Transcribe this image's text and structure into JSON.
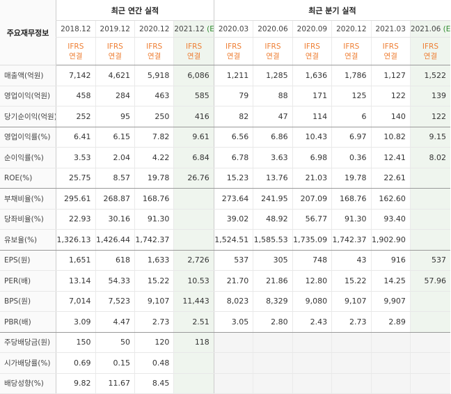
{
  "corner_label": "주요재무정보",
  "annual_header": "최근 연간 실적",
  "quarter_header": "최근 분기 실적",
  "annual_periods": [
    {
      "label": "2018.12",
      "est": ""
    },
    {
      "label": "2019.12",
      "est": ""
    },
    {
      "label": "2020.12",
      "est": ""
    },
    {
      "label": "2021.12",
      "est": "(E)"
    }
  ],
  "quarter_periods": [
    {
      "label": "2020.03",
      "est": ""
    },
    {
      "label": "2020.06",
      "est": ""
    },
    {
      "label": "2020.09",
      "est": ""
    },
    {
      "label": "2020.12",
      "est": ""
    },
    {
      "label": "2021.03",
      "est": ""
    },
    {
      "label": "2021.06",
      "est": "(E)"
    }
  ],
  "ifrs_line1": "IFRS",
  "ifrs_line2": "연결",
  "rows": [
    {
      "label": "매출액(억원)",
      "values": [
        "7,142",
        "4,621",
        "5,918",
        "6,086",
        "1,211",
        "1,285",
        "1,636",
        "1,786",
        "1,127",
        "1,522"
      ]
    },
    {
      "label": "영업이익(억원)",
      "values": [
        "458",
        "284",
        "463",
        "585",
        "79",
        "88",
        "171",
        "125",
        "122",
        "139"
      ]
    },
    {
      "label": "당기순이익(억원)",
      "values": [
        "252",
        "95",
        "250",
        "416",
        "82",
        "47",
        "114",
        "6",
        "140",
        "122"
      ]
    },
    {
      "label": "영업이익률(%)",
      "values": [
        "6.41",
        "6.15",
        "7.82",
        "9.61",
        "6.56",
        "6.86",
        "10.43",
        "6.97",
        "10.82",
        "9.15"
      ]
    },
    {
      "label": "순이익률(%)",
      "values": [
        "3.53",
        "2.04",
        "4.22",
        "6.84",
        "6.78",
        "3.63",
        "6.98",
        "0.36",
        "12.41",
        "8.02"
      ]
    },
    {
      "label": "ROE(%)",
      "values": [
        "25.75",
        "8.57",
        "19.78",
        "26.76",
        "15.23",
        "13.76",
        "21.03",
        "19.78",
        "22.61",
        ""
      ]
    },
    {
      "label": "부채비율(%)",
      "values": [
        "295.61",
        "268.87",
        "168.76",
        "",
        "273.64",
        "241.95",
        "207.09",
        "168.76",
        "162.60",
        ""
      ]
    },
    {
      "label": "당좌비율(%)",
      "values": [
        "22.93",
        "30.16",
        "91.30",
        "",
        "39.02",
        "48.92",
        "56.77",
        "91.30",
        "93.40",
        ""
      ]
    },
    {
      "label": "유보율(%)",
      "values": [
        "1,326.13",
        "1,426.44",
        "1,742.37",
        "",
        "1,524.51",
        "1,585.53",
        "1,735.09",
        "1,742.37",
        "1,902.90",
        ""
      ]
    },
    {
      "label": "EPS(원)",
      "values": [
        "1,651",
        "618",
        "1,633",
        "2,726",
        "537",
        "305",
        "748",
        "43",
        "916",
        "537"
      ]
    },
    {
      "label": "PER(배)",
      "values": [
        "13.14",
        "54.33",
        "15.22",
        "10.53",
        "21.70",
        "21.86",
        "12.80",
        "15.22",
        "14.25",
        "57.96"
      ]
    },
    {
      "label": "BPS(원)",
      "values": [
        "7,014",
        "7,523",
        "9,107",
        "11,443",
        "8,023",
        "8,329",
        "9,080",
        "9,107",
        "9,907",
        ""
      ]
    },
    {
      "label": "PBR(배)",
      "values": [
        "3.09",
        "4.47",
        "2.73",
        "2.51",
        "3.05",
        "2.80",
        "2.43",
        "2.73",
        "2.89",
        ""
      ]
    },
    {
      "label": "주당배당금(원)",
      "values": [
        "150",
        "50",
        "120",
        "118",
        "",
        "",
        "",
        "",
        "",
        ""
      ]
    },
    {
      "label": "시가배당률(%)",
      "values": [
        "0.69",
        "0.15",
        "0.48",
        "",
        "",
        "",
        "",
        "",
        "",
        ""
      ]
    },
    {
      "label": "배당성향(%)",
      "values": [
        "9.82",
        "11.67",
        "8.45",
        "",
        "",
        "",
        "",
        "",
        "",
        ""
      ]
    }
  ]
}
